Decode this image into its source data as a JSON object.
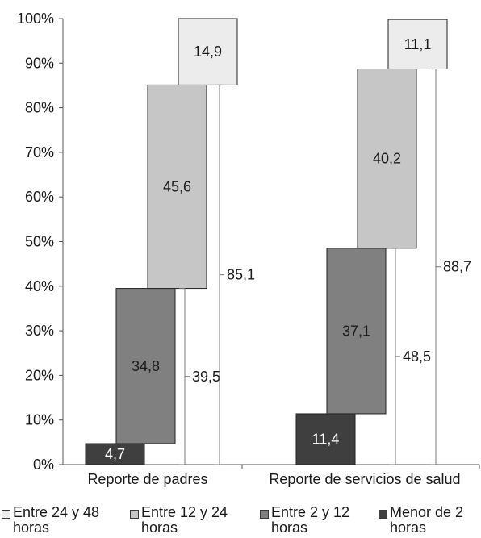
{
  "chart_data": {
    "type": "bar",
    "subtype": "stacked-waterfall",
    "categories": [
      "Reporte de padres",
      "Reporte de servicios de salud"
    ],
    "yticks": [
      "0%",
      "10%",
      "20%",
      "30%",
      "40%",
      "50%",
      "60%",
      "70%",
      "80%",
      "90%",
      "100%"
    ],
    "ylim": [
      0,
      100
    ],
    "grid": false,
    "legend_position": "bottom",
    "series": [
      {
        "name": "Menor de 2 horas",
        "values": [
          4.7,
          11.4
        ],
        "labels": [
          "4,7",
          "11,4"
        ],
        "color": "#3f3f3f",
        "text_color": "#ffffff"
      },
      {
        "name": "Entre 2 y 12 horas",
        "values": [
          34.8,
          37.1
        ],
        "labels": [
          "34,8",
          "37,1"
        ],
        "color": "#808080",
        "text_color": "#1a1a1a"
      },
      {
        "name": "Entre 12 y 24 horas",
        "values": [
          45.6,
          40.2
        ],
        "labels": [
          "45,6",
          "40,2"
        ],
        "color": "#c6c6c6",
        "text_color": "#1a1a1a"
      },
      {
        "name": "Entre 24 y 48 horas",
        "values": [
          14.9,
          11.1
        ],
        "labels": [
          "14,9",
          "11,1"
        ],
        "color": "#ececec",
        "text_color": "#1a1a1a"
      }
    ],
    "cumulative_annotations": [
      {
        "category": "Reporte de padres",
        "value": 39.5,
        "label": "39,5"
      },
      {
        "category": "Reporte de padres",
        "value": 85.1,
        "label": "85,1"
      },
      {
        "category": "Reporte de servicios de salud",
        "value": 48.5,
        "label": "48,5"
      },
      {
        "category": "Reporte de servicios de salud",
        "value": 88.7,
        "label": "88,7"
      }
    ],
    "legend_order": [
      "Entre 24 y 48 horas",
      "Entre 12 y 24 horas",
      "Entre 2 y 12 horas",
      "Menor de 2 horas"
    ],
    "legend_lines": [
      [
        "Entre 24 y 48",
        "horas"
      ],
      [
        "Entre 12 y 24",
        "horas"
      ],
      [
        "Entre 2 y 12",
        "horas"
      ],
      [
        "Menor de 2",
        "horas"
      ]
    ]
  }
}
